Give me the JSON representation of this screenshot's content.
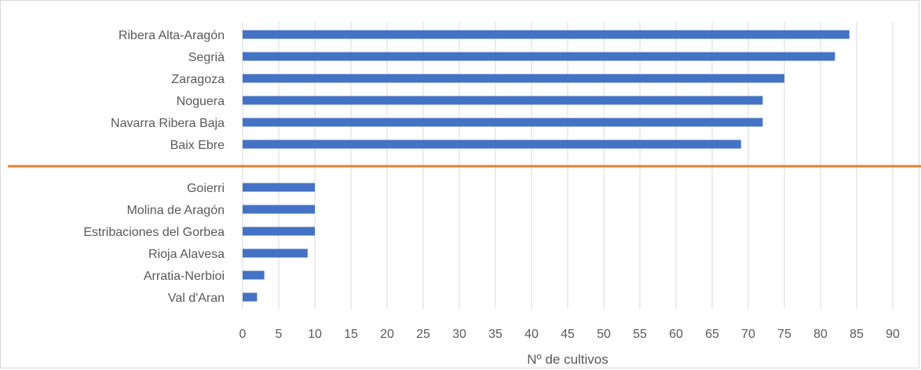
{
  "chart_data": {
    "type": "bar",
    "orientation": "horizontal",
    "xlabel": "Nº de cultivos",
    "xlim": [
      0,
      90
    ],
    "xticks": [
      0,
      5,
      10,
      15,
      20,
      25,
      30,
      35,
      40,
      45,
      50,
      55,
      60,
      65,
      70,
      75,
      80,
      85,
      90
    ],
    "grid": "vertical",
    "groups": [
      {
        "categories": [
          "Ribera Alta-Aragón",
          "Segrià",
          "Zaragoza",
          "Noguera",
          "Navarra Ribera Baja",
          "Baix Ebre"
        ],
        "values": [
          84,
          82,
          75,
          72,
          72,
          69
        ]
      },
      {
        "categories": [
          "Goierri",
          "Molina de Aragón",
          "Estribaciones del Gorbea",
          "Rioja Alavesa",
          "Arratia-Nerbioi",
          "Val d'Aran"
        ],
        "values": [
          10,
          10,
          10,
          9,
          3,
          2
        ]
      }
    ],
    "separator": "horizontal line between groups",
    "colors": {
      "bar": "#4472c4",
      "separator": "#ed7d31",
      "grid": "#d9d9d9",
      "axis_text": "#595959"
    }
  }
}
